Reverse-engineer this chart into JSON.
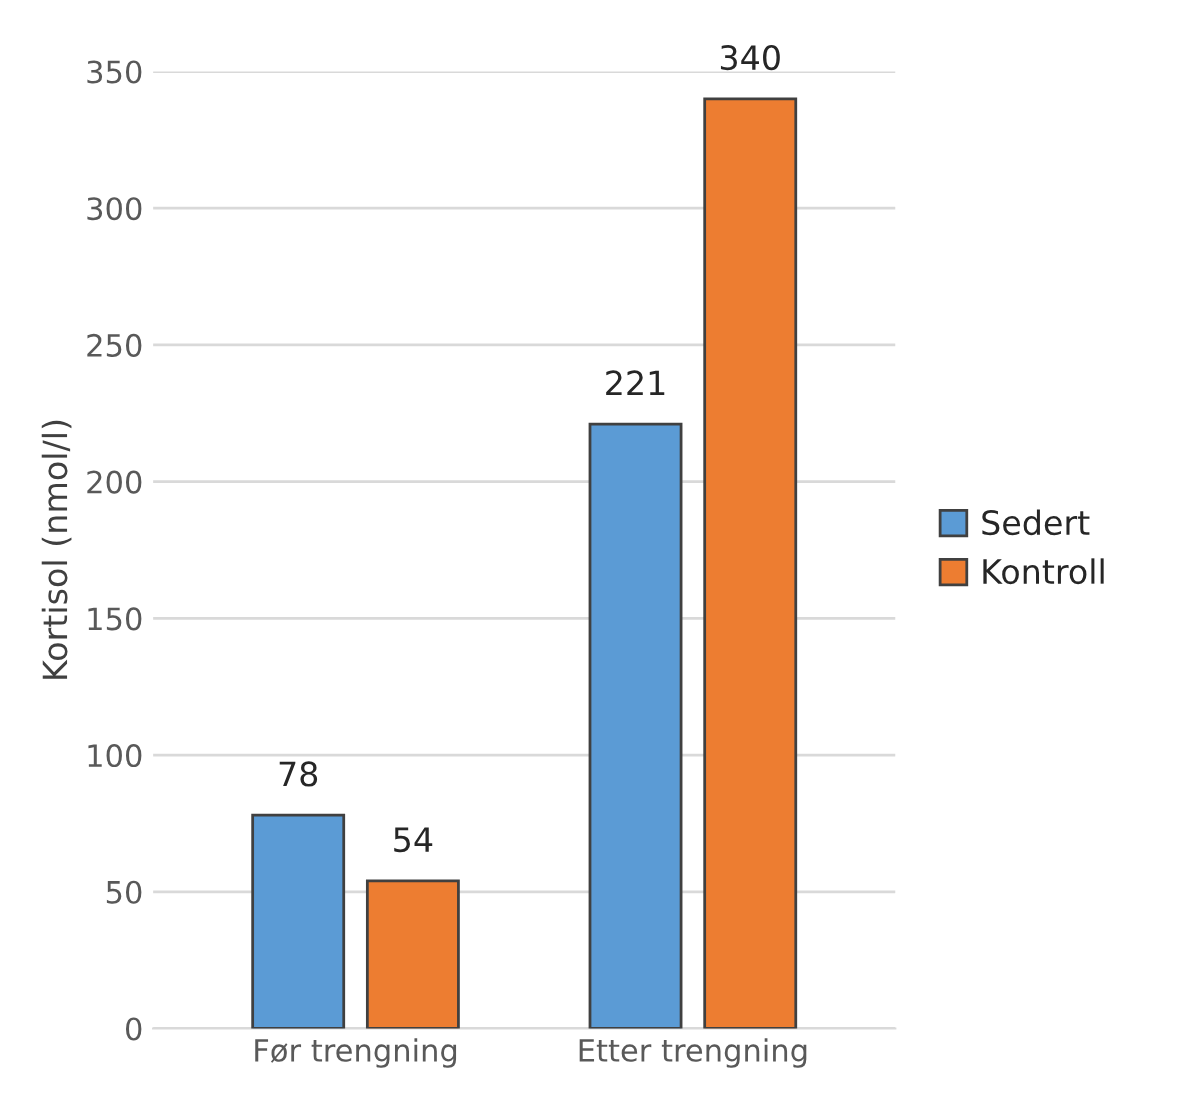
{
  "chart_data": {
    "type": "bar",
    "ylabel": "Kortisol (nmol/l)",
    "categories": [
      "Før trengning",
      "Etter trengning"
    ],
    "series": [
      {
        "name": "Sedert",
        "color": "#5b9bd5",
        "values": [
          78,
          221
        ]
      },
      {
        "name": "Kontroll",
        "color": "#ed7d31",
        "values": [
          54,
          340
        ]
      }
    ],
    "ylim": [
      0,
      350
    ],
    "yticks": [
      0,
      50,
      100,
      150,
      200,
      250,
      300,
      350
    ],
    "grid": "y",
    "legend": "right",
    "data_labels": true
  }
}
